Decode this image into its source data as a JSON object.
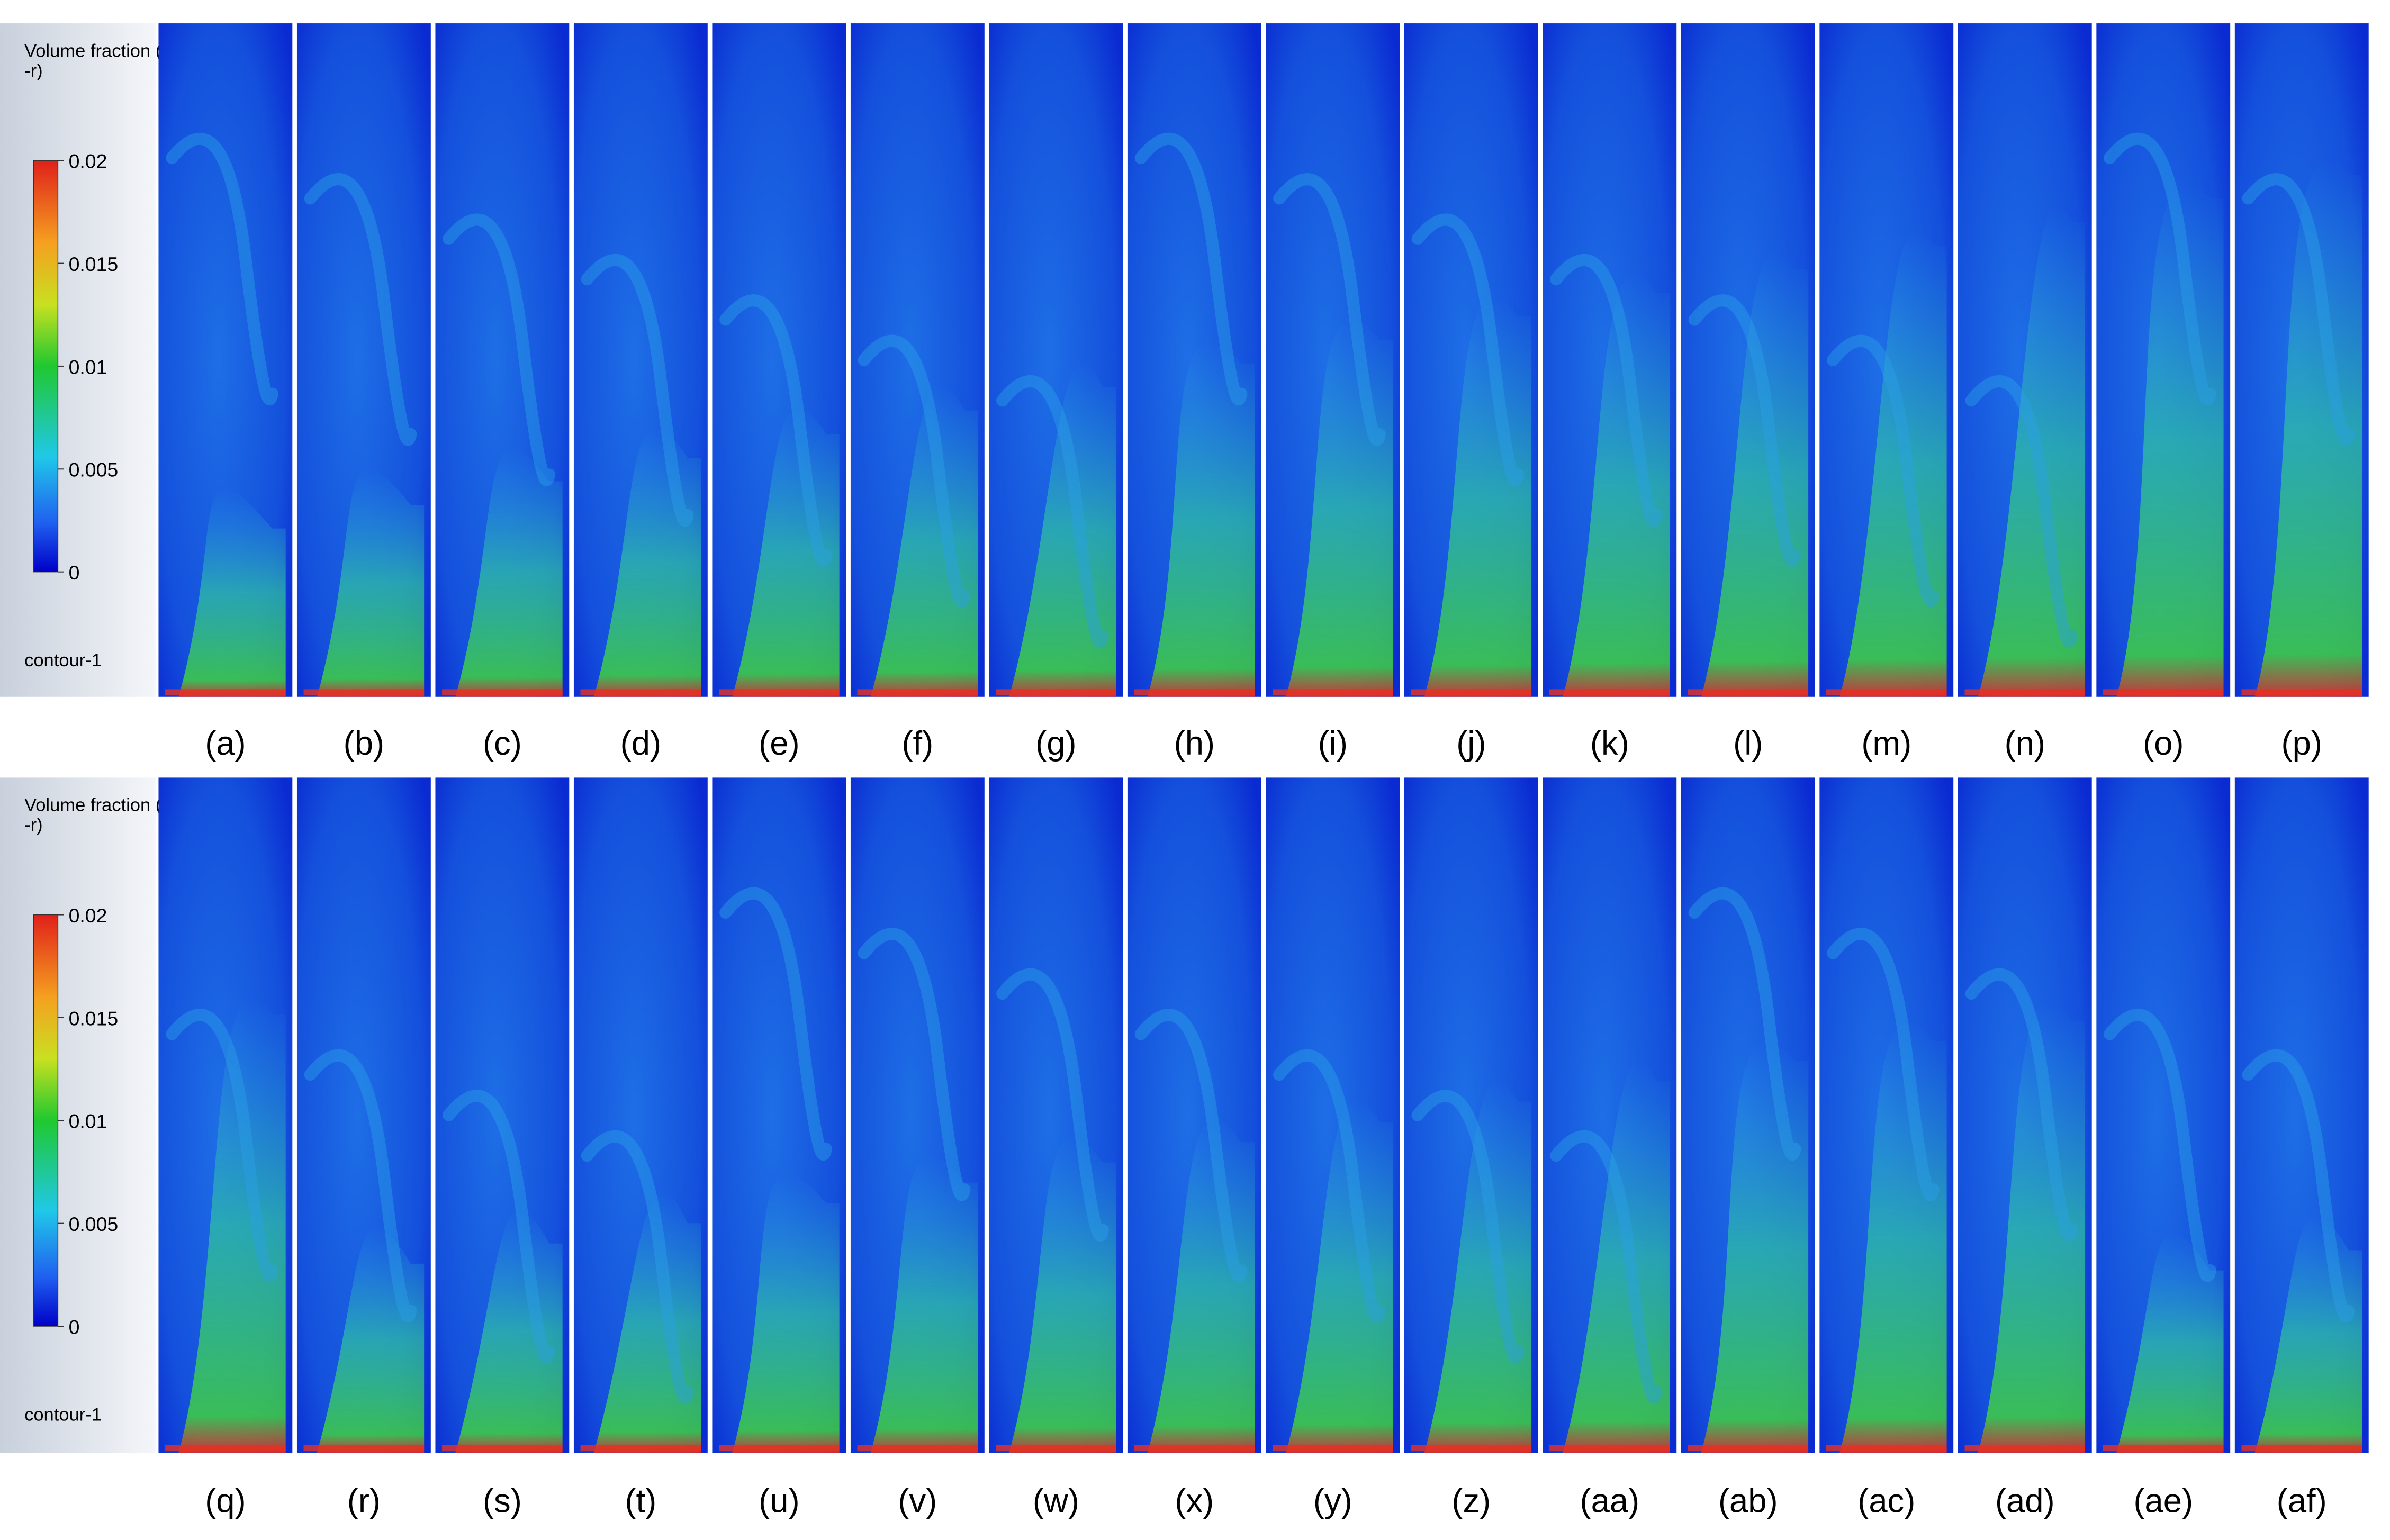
{
  "rows": [
    {
      "legend": {
        "title": [
          "Volume fraction (ai",
          "-r)"
        ],
        "ticks": [
          "0.02",
          "0.015",
          "0.01",
          "0.005",
          "0"
        ],
        "name": "contour-1"
      },
      "panels": [
        "(a)",
        "(b)",
        "(c)",
        "(d)",
        "(e)",
        "(f)",
        "(g)",
        "(h)",
        "(i)",
        "(j)",
        "(k)",
        "(l)",
        "(m)",
        "(n)",
        "(o)",
        "(p)"
      ]
    },
    {
      "legend": {
        "title": [
          "Volume fraction (ai",
          "-r)"
        ],
        "ticks": [
          "0.02",
          "0.015",
          "0.01",
          "0.005",
          "0"
        ],
        "name": "contour-1"
      },
      "panels": [
        "(q)",
        "(r)",
        "(s)",
        "(t)",
        "(u)",
        "(v)",
        "(w)",
        "(x)",
        "(y)",
        "(z)",
        "(aa)",
        "(ab)",
        "(ac)",
        "(ad)",
        "(ae)",
        "(af)"
      ]
    }
  ]
}
